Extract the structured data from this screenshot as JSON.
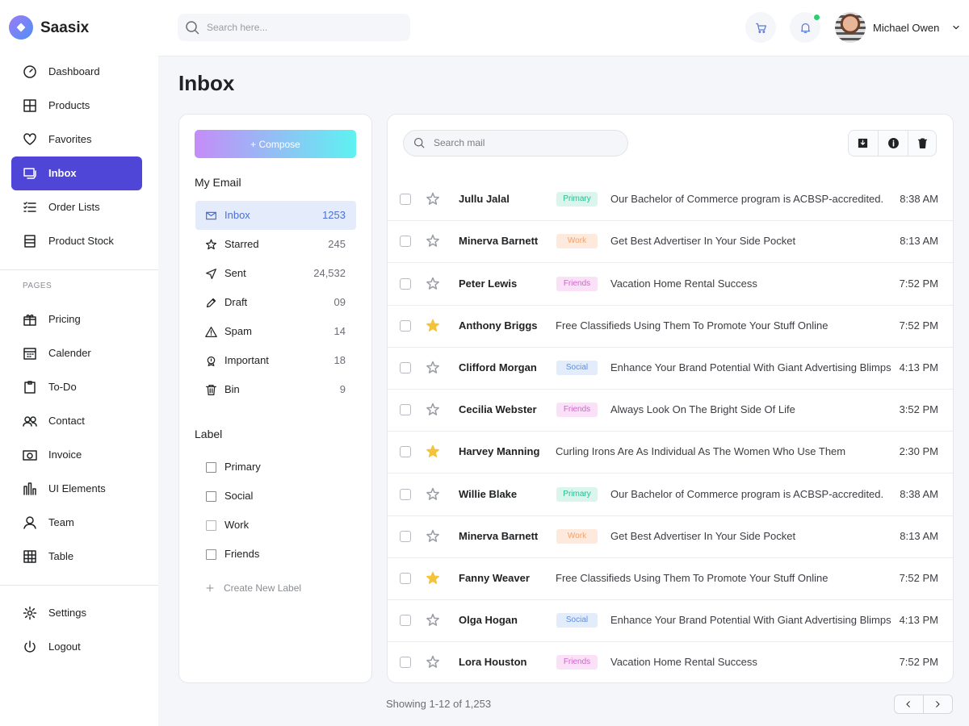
{
  "header": {
    "brand": "Saasix",
    "search_placeholder": "Search here...",
    "user_name": "Michael Owen"
  },
  "sidebar": {
    "main": [
      "Dashboard",
      "Products",
      "Favorites",
      "Inbox",
      "Order Lists",
      "Product Stock"
    ],
    "active": "Inbox",
    "pages_heading": "PAGES",
    "pages": [
      "Pricing",
      "Calender",
      "To-Do",
      "Contact",
      "Invoice",
      "UI Elements",
      "Team",
      "Table"
    ],
    "bottom": [
      "Settings",
      "Logout"
    ]
  },
  "page_title": "Inbox",
  "mailbox": {
    "compose": "+ Compose",
    "my_email_heading": "My Email",
    "folders": [
      {
        "name": "Inbox",
        "count": "1253"
      },
      {
        "name": "Starred",
        "count": "245"
      },
      {
        "name": "Sent",
        "count": "24,532"
      },
      {
        "name": "Draft",
        "count": "09"
      },
      {
        "name": "Spam",
        "count": "14"
      },
      {
        "name": "Important",
        "count": "18"
      },
      {
        "name": "Bin",
        "count": "9"
      }
    ],
    "active_folder": "Inbox",
    "label_heading": "Label",
    "labels": [
      {
        "name": "Primary",
        "color": "#2fb990",
        "bg": "#d9f5ec"
      },
      {
        "name": "Social",
        "color": "#5d8ee0",
        "bg": "#e2ecfb"
      },
      {
        "name": "Work",
        "color": "#f0a36e",
        "bg": "#fdeadd"
      },
      {
        "name": "Friends",
        "color": "#d262cf",
        "bg": "#fbe1f7"
      }
    ],
    "create_label": "Create New Label"
  },
  "mail_list": {
    "search_placeholder": "Search mail",
    "emails": [
      {
        "sender": "Jullu Jalal",
        "tag": "Primary",
        "subject": "Our Bachelor of Commerce program is ACBSP-accredited.",
        "time": "8:38 AM",
        "starred": false
      },
      {
        "sender": "Minerva Barnett",
        "tag": "Work",
        "subject": "Get Best Advertiser In Your Side Pocket",
        "time": "8:13 AM",
        "starred": false
      },
      {
        "sender": "Peter Lewis",
        "tag": "Friends",
        "subject": "Vacation Home Rental Success",
        "time": "7:52 PM",
        "starred": false
      },
      {
        "sender": "Anthony Briggs",
        "subject": "Free Classifieds Using Them To Promote Your Stuff Online",
        "time": "7:52 PM",
        "starred": true
      },
      {
        "sender": "Clifford Morgan",
        "tag": "Social",
        "subject": "Enhance Your Brand Potential With Giant Advertising Blimps",
        "time": "4:13 PM",
        "starred": false
      },
      {
        "sender": "Cecilia Webster",
        "tag": "Friends",
        "subject": "Always Look On The Bright Side Of Life",
        "time": "3:52 PM",
        "starred": false
      },
      {
        "sender": "Harvey Manning",
        "subject": "Curling Irons Are As Individual As The Women Who Use Them",
        "time": "2:30 PM",
        "starred": true
      },
      {
        "sender": "Willie Blake",
        "tag": "Primary",
        "subject": "Our Bachelor of Commerce program is ACBSP-accredited.",
        "time": "8:38 AM",
        "starred": false
      },
      {
        "sender": "Minerva Barnett",
        "tag": "Work",
        "subject": "Get Best Advertiser In Your Side Pocket",
        "time": "8:13 AM",
        "starred": false
      },
      {
        "sender": "Fanny Weaver",
        "subject": "Free Classifieds Using Them To Promote Your Stuff Online",
        "time": "7:52 PM",
        "starred": true
      },
      {
        "sender": "Olga Hogan",
        "tag": "Social",
        "subject": "Enhance Your Brand Potential With Giant Advertising Blimps",
        "time": "4:13 PM",
        "starred": false
      },
      {
        "sender": "Lora Houston",
        "tag": "Friends",
        "subject": "Vacation Home Rental Success",
        "time": "7:52 PM",
        "starred": false
      }
    ],
    "footer": "Showing 1-12 of 1,253"
  }
}
